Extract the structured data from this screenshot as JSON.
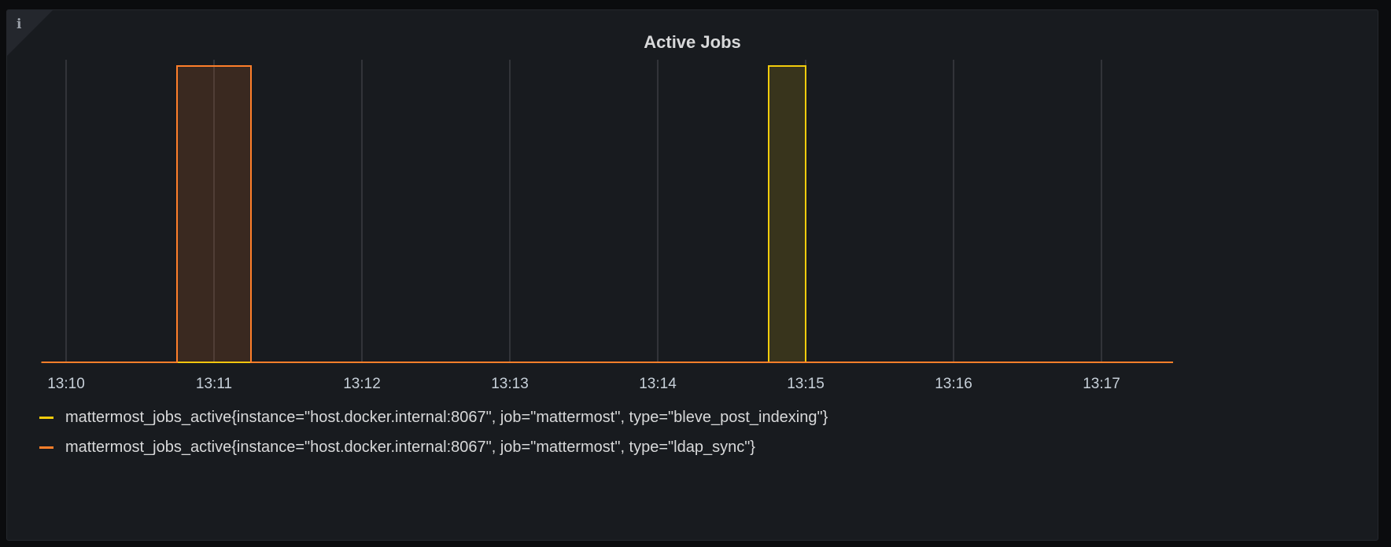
{
  "panel": {
    "title": "Active Jobs",
    "info_icon": "info-icon"
  },
  "chart_data": {
    "type": "area",
    "title": "Active Jobs",
    "xlabel": "",
    "ylabel": "",
    "x_ticks": [
      "13:10",
      "13:11",
      "13:12",
      "13:13",
      "13:14",
      "13:15",
      "13:16",
      "13:17"
    ],
    "xlim": [
      "13:09:50",
      "13:17:29"
    ],
    "ylim": [
      0,
      1
    ],
    "y_axis_visible": false,
    "grid": "vertical",
    "legend_placement": "bottom",
    "step": true,
    "series": [
      {
        "name": "mattermost_jobs_active{instance=\"host.docker.internal:8067\", job=\"mattermost\", type=\"bleve_post_indexing\"}",
        "color": "#F2CC0C",
        "points": [
          [
            "13:09:50",
            0
          ],
          [
            "13:14:45",
            1
          ],
          [
            "13:15:00",
            0
          ],
          [
            "13:17:29",
            0
          ]
        ]
      },
      {
        "name": "mattermost_jobs_active{instance=\"host.docker.internal:8067\", job=\"mattermost\", type=\"ldap_sync\"}",
        "color": "#FF7F2A",
        "points": [
          [
            "13:09:50",
            0
          ],
          [
            "13:10:45",
            1
          ],
          [
            "13:11:15",
            0
          ],
          [
            "13:17:29",
            0
          ]
        ]
      }
    ]
  }
}
